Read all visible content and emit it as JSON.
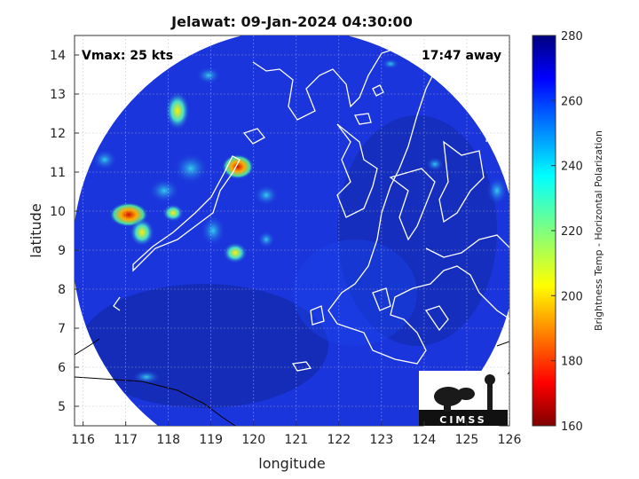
{
  "map": {
    "title": "Jelawat: 09-Jan-2024 04:30:00",
    "vmax_label": "Vmax: 25 kts",
    "distance_label": "17:47 away",
    "x_axis_label": "longitude",
    "y_axis_label": "latitude",
    "lon_range": [
      115.8,
      126
    ],
    "lat_range": [
      4.5,
      14.5
    ],
    "lon_ticks": [
      "116",
      "117",
      "118",
      "119",
      "120",
      "121",
      "122",
      "123",
      "124",
      "125",
      "126"
    ],
    "lat_ticks": [
      "5",
      "6",
      "7",
      "8",
      "9",
      "10",
      "11",
      "12",
      "13",
      "14"
    ],
    "grid": true,
    "background_color": "#1a33d9"
  },
  "colorbar": {
    "label": "Brightness Temp - Horizontal Polarization",
    "range": [
      160,
      280
    ],
    "ticks": [
      "160",
      "180",
      "200",
      "220",
      "240",
      "260",
      "280"
    ],
    "colormap": "jet",
    "placement": "right"
  },
  "logo": {
    "text": "CIMSS"
  }
}
